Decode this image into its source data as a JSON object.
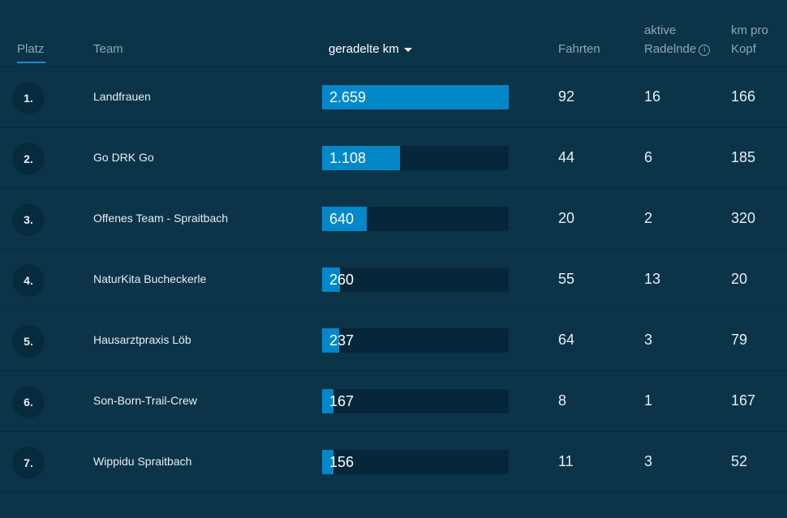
{
  "header": {
    "platz": "Platz",
    "team": "Team",
    "km": "geradelte km",
    "fahrten": "Fahrten",
    "aktive_1": "aktive",
    "aktive_2": "Radelnde",
    "kopf_1": "km pro",
    "kopf_2": "Kopf",
    "info_glyph": "i"
  },
  "max_km": 2659,
  "rows": [
    {
      "rank": "1.",
      "team": "Landfrauen",
      "km": "2.659",
      "km_value": 2659,
      "fahrten": "92",
      "aktive": "16",
      "kopf": "166"
    },
    {
      "rank": "2.",
      "team": "Go DRK Go",
      "km": "1.108",
      "km_value": 1108,
      "fahrten": "44",
      "aktive": "6",
      "kopf": "185"
    },
    {
      "rank": "3.",
      "team": "Offenes Team - Spraitbach",
      "km": "640",
      "km_value": 640,
      "fahrten": "20",
      "aktive": "2",
      "kopf": "320"
    },
    {
      "rank": "4.",
      "team": "NaturKita Bucheckerle",
      "km": "260",
      "km_value": 260,
      "fahrten": "55",
      "aktive": "13",
      "kopf": "20"
    },
    {
      "rank": "5.",
      "team": "Hausarztpraxis Löb",
      "km": "237",
      "km_value": 237,
      "fahrten": "64",
      "aktive": "3",
      "kopf": "79"
    },
    {
      "rank": "6.",
      "team": "Son-Born-Trail-Crew",
      "km": "167",
      "km_value": 167,
      "fahrten": "8",
      "aktive": "1",
      "kopf": "167"
    },
    {
      "rank": "7.",
      "team": "Wippidu Spraitbach",
      "km": "156",
      "km_value": 156,
      "fahrten": "11",
      "aktive": "3",
      "kopf": "52"
    }
  ]
}
